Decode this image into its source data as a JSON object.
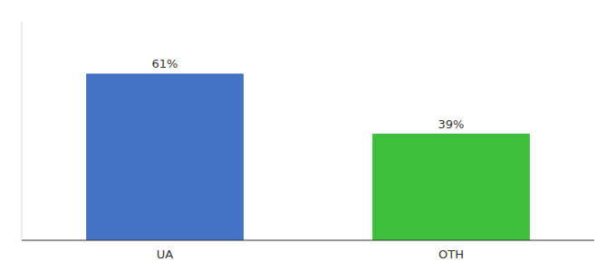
{
  "chart_data": {
    "type": "bar",
    "categories": [
      "UA",
      "OTH"
    ],
    "values": [
      61,
      39
    ],
    "value_labels": [
      "61%",
      "39%"
    ],
    "colors": [
      "#4472c4",
      "#3dbf3d"
    ],
    "ylim": [
      0,
      80
    ],
    "grid": false,
    "data_labels": true,
    "tick_labels": "x"
  }
}
